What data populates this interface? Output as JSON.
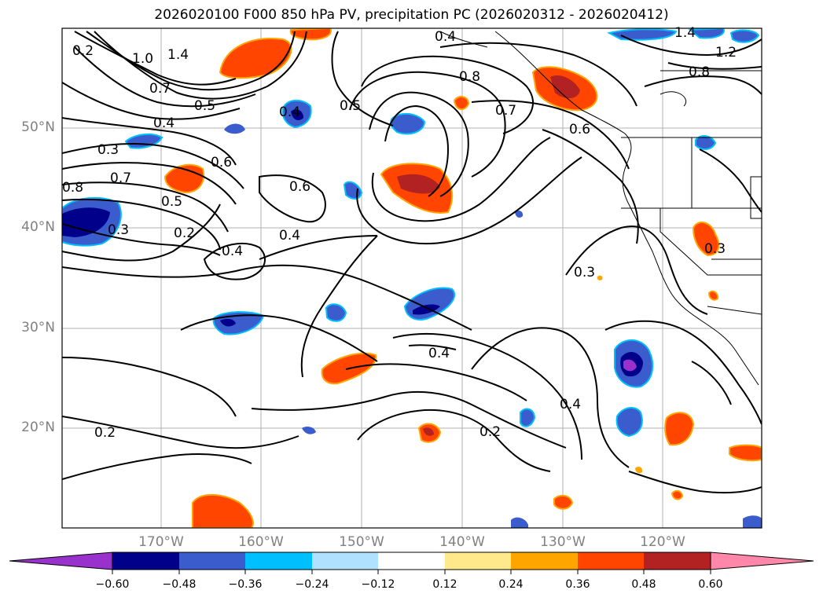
{
  "title": "2026020100 F000 850 hPa PV, precipitation PC (2026020312 - 2026020412)",
  "lat_labels": [
    "50°N",
    "40°N",
    "30°N",
    "20°N"
  ],
  "lon_labels": [
    "170°W",
    "160°W",
    "150°W",
    "140°W",
    "130°W",
    "120°W"
  ],
  "contour_labels": [
    "1.4",
    "1.0",
    "0.7",
    "0.5",
    "0.4",
    "0.3",
    "0.2",
    "0.7",
    "0.8",
    "0.5",
    "0.3",
    "0.2",
    "0.6",
    "0.6",
    "0.4",
    "0.4",
    "0.4",
    "0.5",
    "0.8",
    "0.7",
    "0.6",
    "0.4",
    "1.4",
    "1.2",
    "0.8",
    "0.3",
    "0.3",
    "0.4",
    "0.4",
    "0.2",
    "0.2"
  ],
  "colorbar": {
    "ticks": [
      "−0.60",
      "−0.48",
      "−0.36",
      "−0.24",
      "−0.12",
      "0.12",
      "0.24",
      "0.36",
      "0.48",
      "0.60"
    ],
    "colors": [
      "#9932cc",
      "#00008b",
      "#3a5ccc",
      "#00bfff",
      "#b0e2ff",
      "#ffffff",
      "#ffe98a",
      "#ffa500",
      "#ff4500",
      "#b22222",
      "#ff88aa"
    ]
  }
}
